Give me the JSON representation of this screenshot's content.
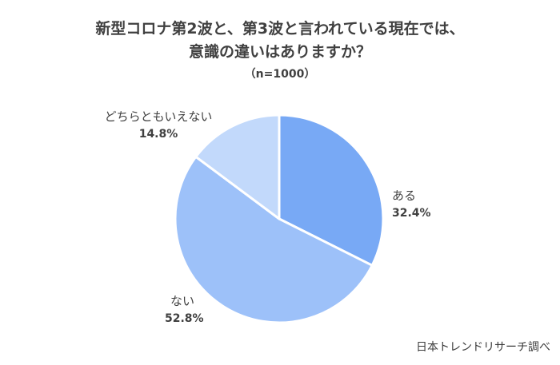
{
  "chart_data": {
    "type": "pie",
    "title_lines": [
      "新型コロナ第2波と、第3波と言われている現在では、",
      "意識の違いはありますか？"
    ],
    "subtitle": "（n=1000）",
    "slices": [
      {
        "label": "ある",
        "value": 32.4,
        "value_label": "32.4%",
        "color": "#78a9f5"
      },
      {
        "label": "ない",
        "value": 52.8,
        "value_label": "52.8%",
        "color": "#9dc1f9"
      },
      {
        "label": "どちらともいえない",
        "value": 14.8,
        "value_label": "14.8%",
        "color": "#c2d9fb"
      }
    ],
    "start_angle": "12 o'clock",
    "direction": "clockwise",
    "slice_border_color": "#ffffff",
    "source": "日本トレンドリサーチ調べ"
  }
}
